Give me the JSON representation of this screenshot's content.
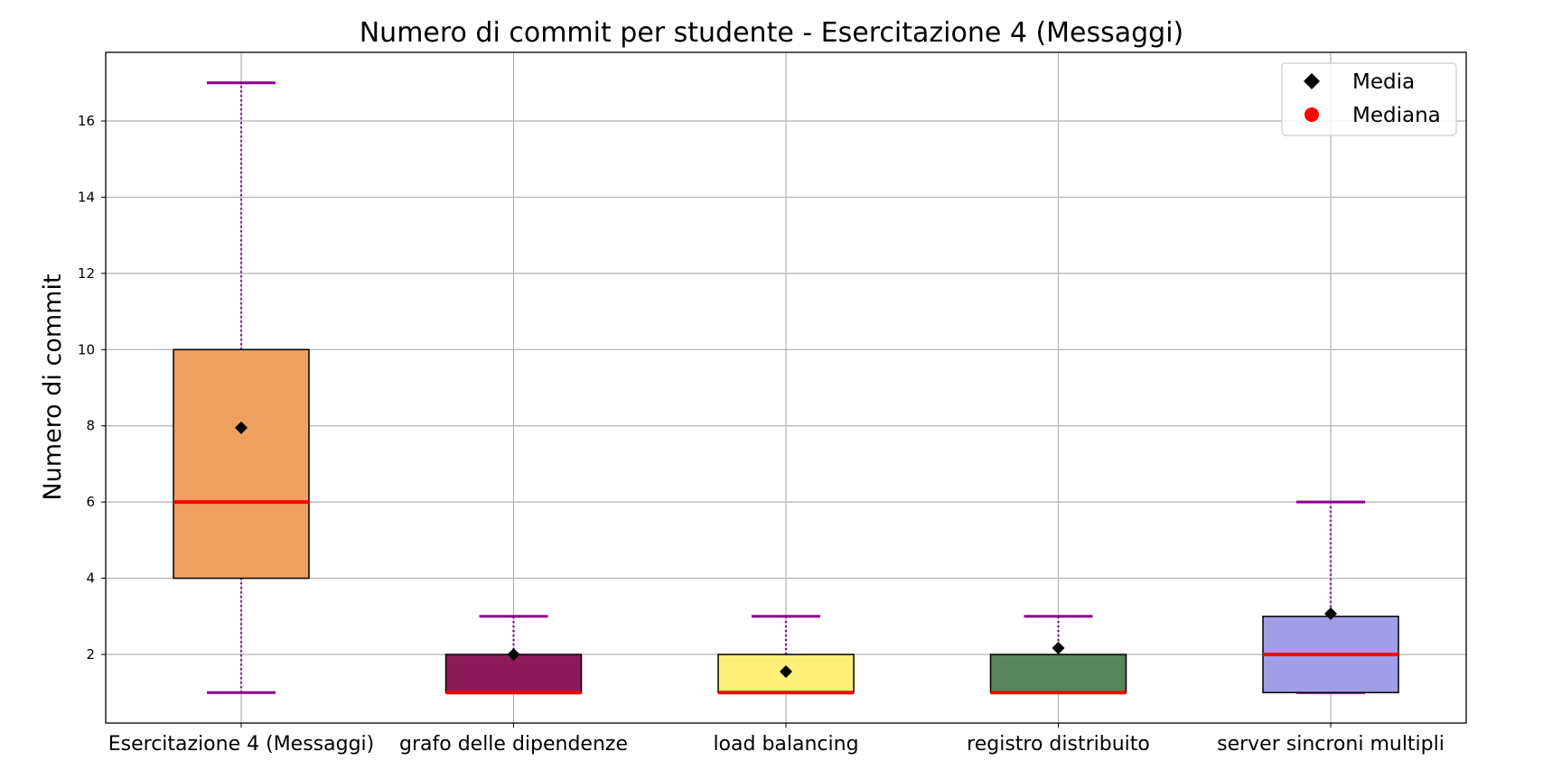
{
  "chart_data": {
    "type": "box",
    "title": "Numero di commit per studente - Esercitazione 4 (Messaggi)",
    "xlabel": "",
    "ylabel": "Numero di commit",
    "ylim": [
      0.2,
      17.8
    ],
    "yticks": [
      2,
      4,
      6,
      8,
      10,
      12,
      14,
      16
    ],
    "grid": true,
    "legend": {
      "placement": "top-right",
      "entries": [
        {
          "label": "Media",
          "marker": "diamond",
          "color": "#000000"
        },
        {
          "label": "Mediana",
          "marker": "circle",
          "color": "#ff0000"
        }
      ]
    },
    "categories": [
      "Esercitazione 4 (Messaggi)",
      "grafo delle dipendenze",
      "load balancing",
      "registro distribuito",
      "server sincroni multipli"
    ],
    "boxes": [
      {
        "whisker_low": 1,
        "q1": 4,
        "median": 6,
        "q3": 10,
        "whisker_high": 17,
        "mean": 7.95,
        "color": "#eea061"
      },
      {
        "whisker_low": 1,
        "q1": 1,
        "median": 1,
        "q3": 2,
        "whisker_high": 3,
        "mean": 2.0,
        "color": "#8b1a57"
      },
      {
        "whisker_low": 1,
        "q1": 1,
        "median": 1,
        "q3": 2,
        "whisker_high": 3,
        "mean": 1.55,
        "color": "#fff07a"
      },
      {
        "whisker_low": 1,
        "q1": 1,
        "median": 1,
        "q3": 2,
        "whisker_high": 3,
        "mean": 2.17,
        "color": "#568559"
      },
      {
        "whisker_low": 1,
        "q1": 1,
        "median": 2,
        "q3": 3,
        "whisker_high": 6,
        "mean": 3.07,
        "color": "#a09ee6"
      }
    ],
    "whisker_color": "#8b008b",
    "median_color": "#ff0000",
    "mean_color": "#000000"
  }
}
